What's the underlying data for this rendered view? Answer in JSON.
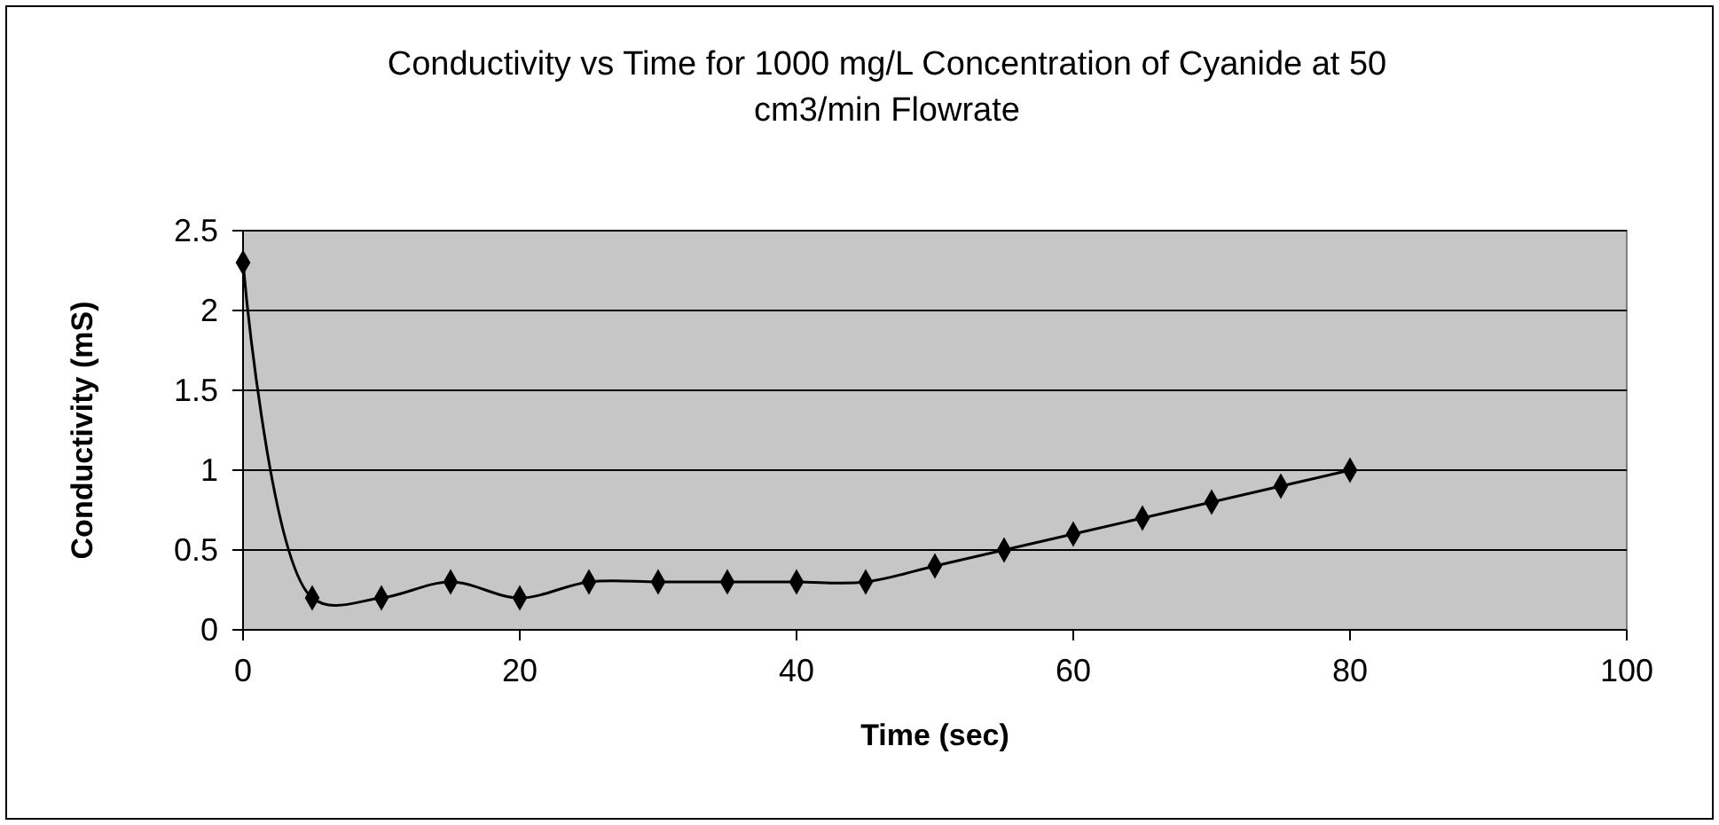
{
  "chart_data": {
    "type": "line",
    "title": "Conductivity vs Time for 1000 mg/L Concentration of Cyanide at 50 cm3/min Flowrate",
    "xlabel": "Time (sec)",
    "ylabel": "Conductivity (mS)",
    "x": [
      0,
      5,
      10,
      15,
      20,
      25,
      30,
      35,
      40,
      45,
      50,
      55,
      60,
      65,
      70,
      75,
      80
    ],
    "series": [
      {
        "color": "#000000",
        "values": [
          2.3,
          0.2,
          0.2,
          0.3,
          0.2,
          0.3,
          0.3,
          0.3,
          0.3,
          0.3,
          0.4,
          0.5,
          0.6,
          0.7,
          0.8,
          0.9,
          1.0
        ]
      }
    ],
    "xlim": [
      0,
      100
    ],
    "xticks": [
      0,
      20,
      40,
      60,
      80,
      100
    ],
    "ylim": [
      0,
      2.5
    ],
    "yticks": [
      0,
      0.5,
      1,
      1.5,
      2,
      2.5
    ],
    "grid": "y",
    "marker": "diamond",
    "line_style": "solid"
  }
}
